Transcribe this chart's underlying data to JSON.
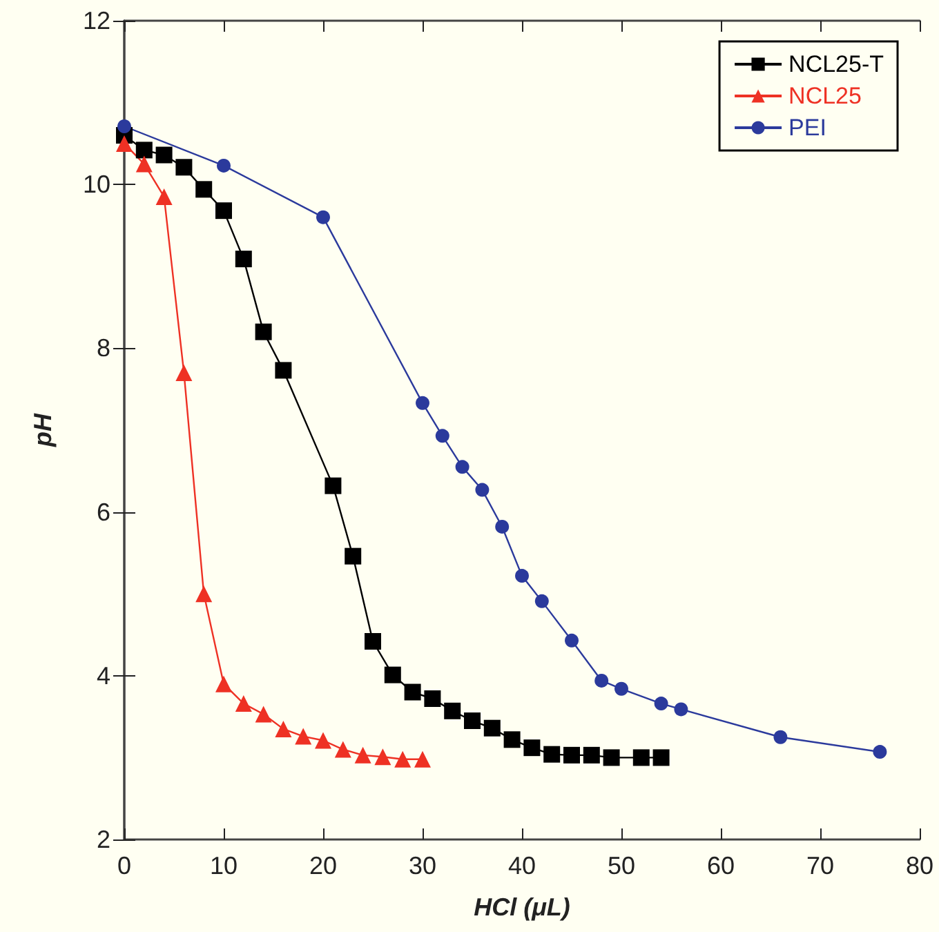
{
  "chart_data": {
    "type": "line",
    "xlabel": "HCl (μL)",
    "ylabel": "pH",
    "xlim": [
      0,
      80
    ],
    "xticks": [
      0,
      10,
      20,
      30,
      40,
      50,
      60,
      70,
      80
    ],
    "ylim": [
      2,
      12
    ],
    "yticks": [
      2,
      4,
      6,
      8,
      10,
      12
    ],
    "grid": false,
    "legend": "top right",
    "series": [
      {
        "name": "NCL25-T",
        "color": "#000000",
        "marker": "square",
        "x": [
          0,
          2,
          4,
          6,
          8,
          10,
          12,
          14,
          16,
          21,
          23,
          25,
          27,
          29,
          31,
          33,
          35,
          37,
          39,
          41,
          43,
          45,
          47,
          49,
          52,
          54
        ],
        "values": [
          10.6,
          10.42,
          10.36,
          10.21,
          9.94,
          9.68,
          9.09,
          8.2,
          7.73,
          6.32,
          5.46,
          4.42,
          4.01,
          3.8,
          3.72,
          3.57,
          3.45,
          3.36,
          3.22,
          3.12,
          3.04,
          3.03,
          3.03,
          3.0,
          3.0,
          3.0
        ]
      },
      {
        "name": "NCL25",
        "color": "#ee3124",
        "marker": "triangle",
        "x": [
          0,
          2,
          4,
          6,
          8,
          10,
          12,
          14,
          16,
          18,
          20,
          22,
          24,
          26,
          28,
          30
        ],
        "values": [
          10.5,
          10.25,
          9.85,
          7.7,
          5.0,
          3.9,
          3.66,
          3.53,
          3.35,
          3.26,
          3.21,
          3.1,
          3.03,
          3.01,
          2.98,
          2.98
        ]
      },
      {
        "name": "PEI",
        "color": "#2b3a9c",
        "marker": "circle",
        "x": [
          0,
          10,
          20,
          30,
          32,
          34,
          36,
          38,
          40,
          42,
          45,
          48,
          50,
          54,
          56,
          66,
          76
        ],
        "values": [
          10.71,
          10.23,
          9.6,
          7.33,
          6.93,
          6.55,
          6.27,
          5.82,
          5.22,
          4.91,
          4.43,
          3.94,
          3.84,
          3.66,
          3.59,
          3.25,
          3.07
        ]
      }
    ]
  }
}
